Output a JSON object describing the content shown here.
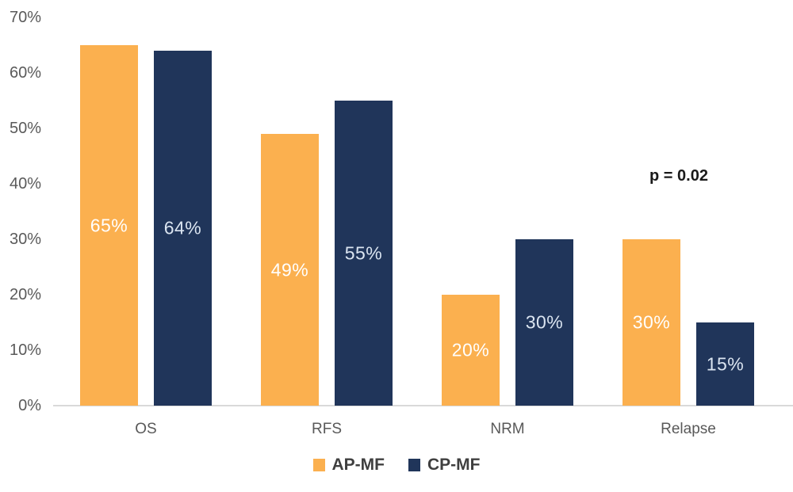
{
  "chart_data": {
    "type": "bar",
    "title": "",
    "categories": [
      "OS",
      "RFS",
      "NRM",
      "Relapse"
    ],
    "series": [
      {
        "name": "AP-MF",
        "values": [
          65,
          49,
          20,
          30
        ],
        "color": "#FBB04F",
        "label_color": "#FFFFFF"
      },
      {
        "name": "CP-MF",
        "values": [
          64,
          55,
          30,
          15
        ],
        "color": "#20355A",
        "label_color": "#DBE5F1"
      }
    ],
    "value_suffix": "%",
    "y_ticks": [
      70,
      60,
      50,
      40,
      30,
      20,
      10,
      0
    ],
    "ylim": [
      0,
      70
    ],
    "grid": false,
    "legend_position": "bottom",
    "annotation": {
      "text": "p = 0.02",
      "target_category": "Relapse"
    }
  },
  "colors": {
    "background": "#FFFFFF",
    "axis_line": "#D9D9D9",
    "tick_label": "#5A5A5A",
    "category_label": "#595959",
    "legend_label": "#3F3F3F",
    "annotation": "#1A1A1A"
  }
}
